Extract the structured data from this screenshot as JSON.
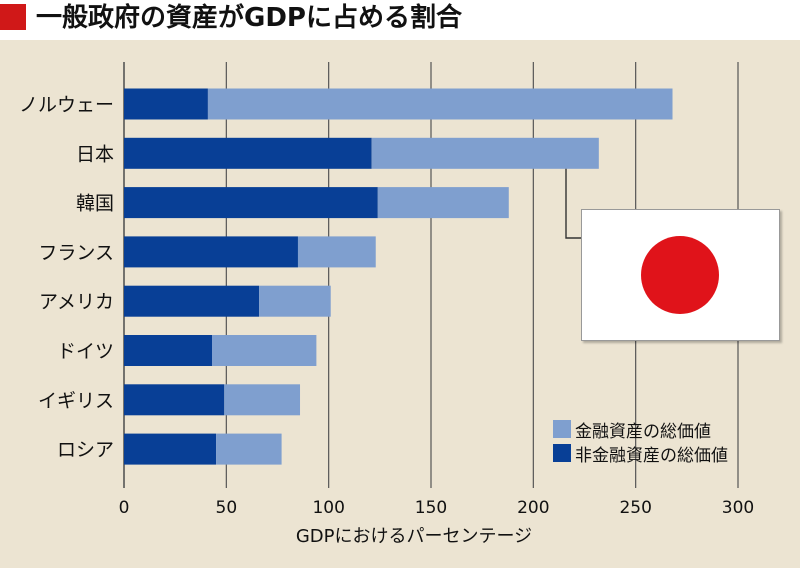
{
  "title": "一般政府の資産がGDPに占める割合",
  "colors": {
    "header_marker": "#d01818",
    "financial": "#7f9fcf",
    "non_financial": "#083f96",
    "gridline": "#555555",
    "background": "#ece4d2",
    "flag_sun": "#e0131a"
  },
  "legend": {
    "financial_label": "金融資産の総価値",
    "non_financial_label": "非金融資産の総価値"
  },
  "chart_data": {
    "type": "bar",
    "orientation": "horizontal",
    "stacked": true,
    "title": "一般政府の資産がGDPに占める割合",
    "xlabel": "GDPにおけるパーセンテージ",
    "ylabel": "",
    "xlim": [
      0,
      300
    ],
    "xticks": [
      0,
      50,
      100,
      150,
      200,
      250,
      300
    ],
    "grid": true,
    "legend_position": "bottom-right",
    "categories": [
      "ノルウェー",
      "日本",
      "韓国",
      "フランス",
      "アメリカ",
      "ドイツ",
      "イギリス",
      "ロシア"
    ],
    "series": [
      {
        "name": "非金融資産の総価値",
        "values": [
          41,
          121,
          124,
          85,
          66,
          43,
          49,
          45
        ]
      },
      {
        "name": "金融資産の総価値",
        "values": [
          227,
          111,
          64,
          38,
          35,
          51,
          37,
          32
        ]
      }
    ],
    "highlight": "日本"
  }
}
